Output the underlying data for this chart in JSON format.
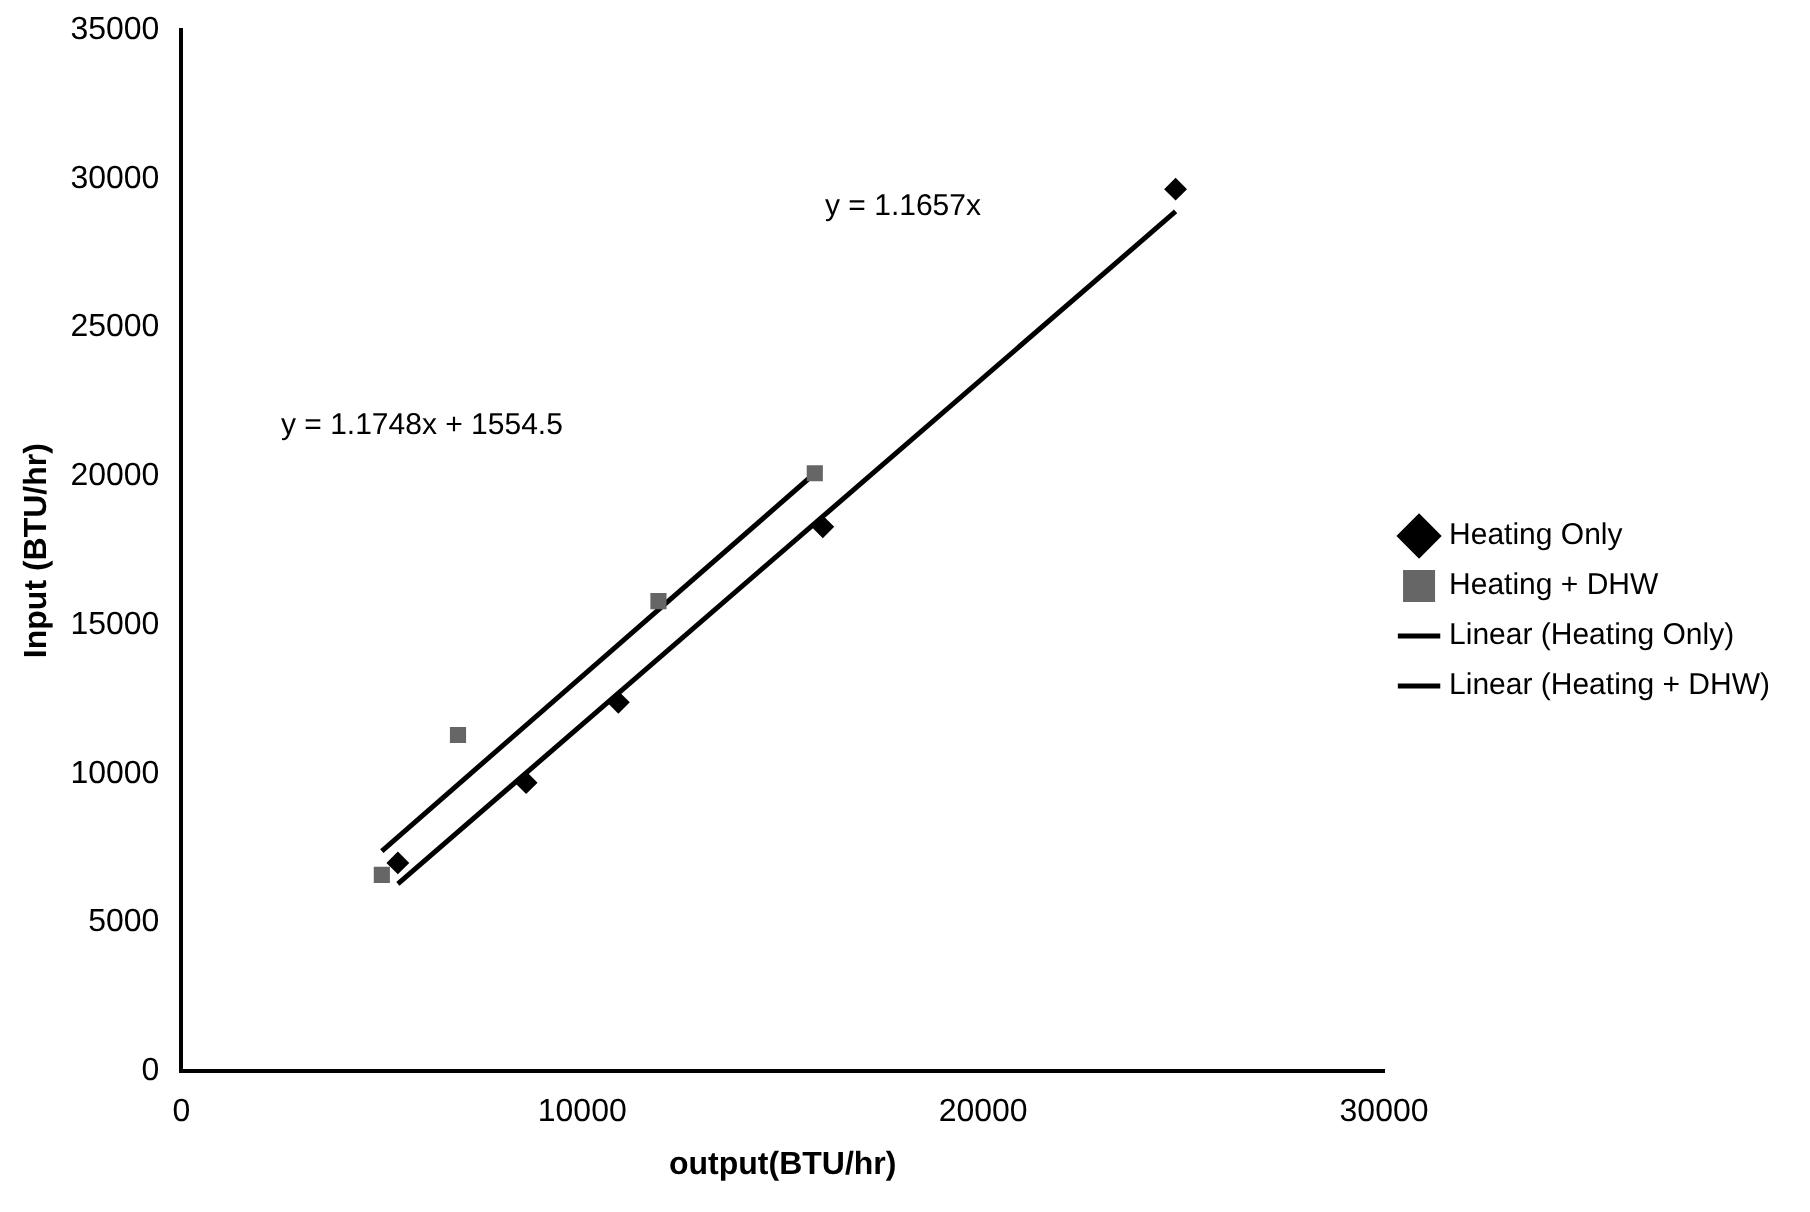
{
  "chart_data": {
    "type": "scatter",
    "xlabel": "output(BTU/hr)",
    "ylabel": "Input (BTU/hr)",
    "xlim": [
      0,
      30000
    ],
    "xticks": [
      0,
      10000,
      20000,
      30000
    ],
    "ylim": [
      0,
      35000
    ],
    "yticks": [
      0,
      5000,
      10000,
      15000,
      20000,
      25000,
      30000,
      35000
    ],
    "grid": false,
    "legend": "right",
    "series": [
      {
        "name": "Heating Only",
        "color": "#000000",
        "marker": "diamond",
        "x": [
          5400,
          8600,
          10900,
          16000,
          24800
        ],
        "values": [
          7000,
          9700,
          12400,
          18300,
          29650
        ]
      },
      {
        "name": "Heating + DHW",
        "color": "#666666",
        "marker": "square",
        "x": [
          5000,
          6900,
          11900,
          15800
        ],
        "values": [
          6600,
          11300,
          15800,
          20100
        ]
      },
      {
        "name": "Linear (Heating Only)",
        "type": "line",
        "color": "#000000",
        "marker": "none",
        "x": [
          5400,
          24800
        ],
        "values": [
          6300,
          28900
        ]
      },
      {
        "name": "Linear (Heating + DHW)",
        "type": "line",
        "color": "#000000",
        "marker": "none",
        "x": [
          5000,
          15800
        ],
        "values": [
          7400,
          20100
        ]
      }
    ],
    "annotations": [
      "y = 1.1657x",
      "y = 1.1748x + 1554.5"
    ]
  }
}
